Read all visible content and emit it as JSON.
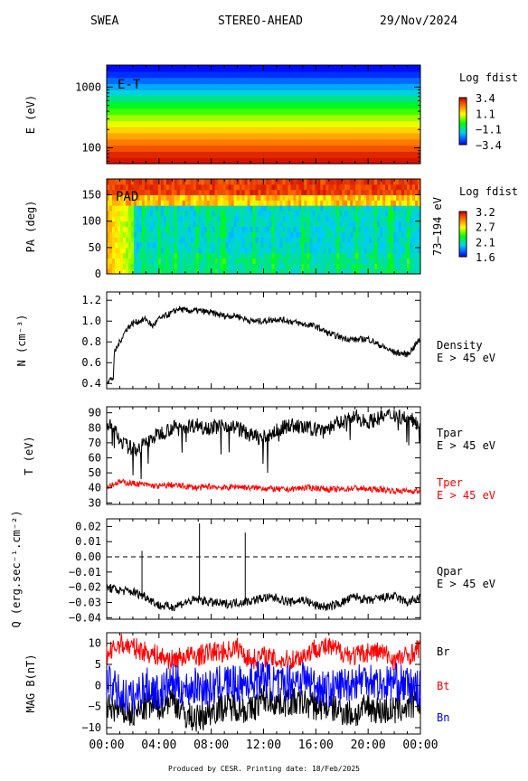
{
  "header": {
    "instrument": "SWEA",
    "spacecraft": "STEREO-AHEAD",
    "date": "29/Nov/2024"
  },
  "footer": "Produced by CESR.    Printing date: 18/Feb/2025",
  "colors": {
    "black": "#000000",
    "red": "#ff0000",
    "blue": "#0000ff"
  },
  "chart_data": [
    {
      "type": "heatmap",
      "ylabel": "E (eV)",
      "yscale": "log",
      "yticks": [
        "100",
        "1000"
      ],
      "annotation": "E-T",
      "colorbar": {
        "title": "Log fdist",
        "ticks": [
          "3.4",
          "1.1",
          "−1.1",
          "−3.4"
        ],
        "range": [
          -3.4,
          3.4
        ]
      },
      "rows_low_to_high_energy": [
        3.2,
        3.0,
        2.6,
        2.2,
        1.8,
        1.4,
        0.9,
        0.5,
        0.0,
        -0.5,
        -1.0,
        -1.5,
        -2.0,
        -2.5,
        -3.0,
        -3.3
      ]
    },
    {
      "type": "heatmap",
      "ylabel": "PA (deg)",
      "yticks": [
        "0",
        "50",
        "100",
        "150"
      ],
      "ylim": [
        0,
        180
      ],
      "annotation": "PAD",
      "side_label": "73–194 eV",
      "colorbar": {
        "title": "Log fdist",
        "ticks": [
          "3.2",
          "2.7",
          "2.1",
          "1.6"
        ],
        "range": [
          1.6,
          3.2
        ]
      }
    },
    {
      "type": "line",
      "ylabel": "N (cm⁻³)",
      "yticks": [
        "0.4",
        "0.6",
        "0.8",
        "1.0",
        "1.2"
      ],
      "ylim": [
        0.35,
        1.28
      ],
      "series": [
        {
          "name": "Density",
          "sublabel": "E > 45 eV",
          "color": "#000000",
          "x": [
            0,
            0.3,
            0.5,
            0.6,
            1.0,
            1.5,
            2.0,
            2.5,
            3.0,
            3.5,
            4.0,
            4.5,
            5.0,
            5.5,
            6.0,
            7.0,
            8.0,
            9.0,
            10.0,
            11.0,
            12.0,
            13.0,
            14.0,
            15.0,
            16.0,
            17.0,
            18.0,
            19.0,
            20.0,
            21.0,
            22.0,
            23.0,
            23.5,
            24.0
          ],
          "y": [
            0.42,
            0.44,
            0.45,
            0.7,
            0.8,
            0.92,
            0.98,
            1.0,
            1.02,
            0.95,
            1.02,
            1.05,
            1.08,
            1.12,
            1.1,
            1.1,
            1.08,
            1.05,
            1.05,
            1.0,
            1.0,
            1.02,
            1.0,
            0.97,
            0.95,
            0.88,
            0.84,
            0.82,
            0.83,
            0.76,
            0.7,
            0.68,
            0.75,
            0.83
          ]
        }
      ]
    },
    {
      "type": "line",
      "ylabel": "T (eV)",
      "yticks": [
        "30",
        "40",
        "50",
        "60",
        "70",
        "80",
        "90"
      ],
      "ylim": [
        29,
        94
      ],
      "series": [
        {
          "name": "Tpar",
          "sublabel": "E > 45 eV",
          "color": "#000000",
          "x": [
            0,
            0.5,
            1.0,
            1.5,
            2.0,
            2.5,
            3.0,
            4.0,
            5.0,
            6.0,
            7.0,
            8.0,
            9.0,
            10.0,
            11.0,
            12.0,
            13.0,
            14.0,
            15.0,
            16.0,
            17.0,
            18.0,
            19.0,
            20.0,
            21.0,
            22.0,
            23.0,
            24.0
          ],
          "y": [
            82,
            80,
            72,
            68,
            66,
            67,
            70,
            76,
            80,
            81,
            82,
            80,
            82,
            80,
            75,
            73,
            78,
            82,
            80,
            79,
            80,
            84,
            87,
            84,
            87,
            89,
            86,
            83
          ]
        },
        {
          "name": "Tper",
          "sublabel": "E > 45 eV",
          "color": "#ff0000",
          "x": [
            0,
            1,
            2,
            3,
            4,
            5,
            6,
            7,
            8,
            9,
            10,
            11,
            12,
            13,
            14,
            15,
            16,
            17,
            18,
            19,
            20,
            21,
            22,
            23,
            24
          ],
          "y": [
            41,
            44,
            43,
            42,
            41,
            42,
            41,
            40,
            41,
            40,
            41,
            40,
            40,
            39,
            39,
            40,
            40,
            39,
            39,
            40,
            39,
            39,
            38,
            38,
            38
          ]
        }
      ]
    },
    {
      "type": "line",
      "ylabel": "Q (erg.sec⁻¹.cm⁻²)",
      "yticks": [
        "−0.04",
        "−0.03",
        "−0.02",
        "−0.01",
        "0.00",
        "0.01",
        "0.02"
      ],
      "ylim": [
        -0.041,
        0.025
      ],
      "reference_line": 0,
      "series": [
        {
          "name": "Qpar",
          "sublabel": "E > 45 eV",
          "color": "#000000",
          "x": [
            0,
            1,
            2,
            3,
            4,
            5,
            6,
            7,
            8,
            9,
            10,
            11,
            12,
            13,
            14,
            15,
            16,
            17,
            18,
            19,
            20,
            21,
            22,
            23,
            24
          ],
          "y": [
            -0.02,
            -0.022,
            -0.023,
            -0.026,
            -0.032,
            -0.033,
            -0.03,
            -0.028,
            -0.03,
            -0.031,
            -0.03,
            -0.029,
            -0.027,
            -0.027,
            -0.03,
            -0.028,
            -0.032,
            -0.033,
            -0.03,
            -0.026,
            -0.029,
            -0.027,
            -0.026,
            -0.03,
            -0.027
          ]
        }
      ],
      "spikes": [
        {
          "x": 2.7,
          "y": 0.004
        },
        {
          "x": 7.1,
          "y": 0.022
        },
        {
          "x": 10.6,
          "y": 0.016
        }
      ]
    },
    {
      "type": "line",
      "ylabel": "MAG B(nT)",
      "yticks": [
        "−10",
        "−5",
        "0",
        "5",
        "10"
      ],
      "ylim": [
        -11.5,
        12.5
      ],
      "xlim": [
        0,
        24
      ],
      "xticks": [
        "00:00",
        "04:00",
        "08:00",
        "12:00",
        "16:00",
        "20:00",
        "00:00"
      ],
      "series": [
        {
          "name": "Br",
          "color": "#000000",
          "x": [
            0,
            1,
            2,
            3,
            4,
            5,
            6,
            7,
            8,
            9,
            10,
            11,
            12,
            13,
            14,
            15,
            16,
            17,
            18,
            19,
            20,
            21,
            22,
            23,
            24
          ],
          "y": [
            -5,
            -6,
            -7,
            -5,
            -5,
            -3,
            -7,
            -8,
            -6,
            -5,
            -5,
            -6,
            -3,
            -4,
            -4,
            -4,
            -5,
            -5,
            -6,
            -7,
            -5,
            -6,
            -6,
            -5,
            -4
          ]
        },
        {
          "name": "Bt",
          "color": "#ff0000",
          "x": [
            0,
            1,
            2,
            3,
            4,
            5,
            6,
            7,
            8,
            9,
            10,
            11,
            12,
            13,
            14,
            15,
            16,
            17,
            18,
            19,
            20,
            21,
            22,
            23,
            24
          ],
          "y": [
            7,
            10,
            9,
            8,
            7,
            6,
            7,
            7,
            8,
            8,
            9,
            6,
            7,
            6,
            6,
            7,
            9,
            9,
            8,
            7,
            8,
            8,
            6,
            7,
            9
          ]
        },
        {
          "name": "Bn",
          "color": "#0000ff",
          "x": [
            0,
            1,
            2,
            3,
            4,
            5,
            6,
            7,
            8,
            9,
            10,
            11,
            12,
            13,
            14,
            15,
            16,
            17,
            18,
            19,
            20,
            21,
            22,
            23,
            24
          ],
          "y": [
            1,
            -2,
            -3,
            0,
            -2,
            1,
            -1,
            0,
            -1,
            1,
            0,
            1,
            2,
            0,
            1,
            2,
            0,
            -1,
            0,
            1,
            2,
            0,
            1,
            0,
            -1
          ]
        }
      ]
    }
  ]
}
